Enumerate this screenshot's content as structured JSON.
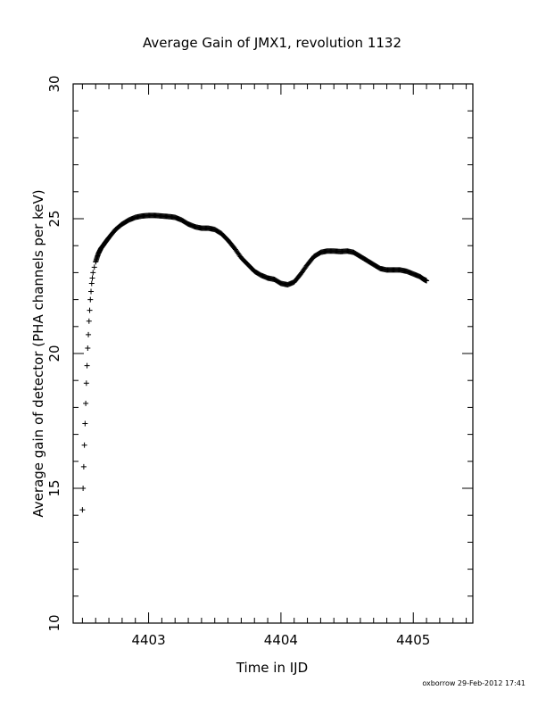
{
  "chart_data": {
    "type": "scatter",
    "title": "Average Gain of JMX1, revolution 1132",
    "xlabel": "Time in IJD",
    "ylabel": "Average gain of detector (PHA channels per keV)",
    "xlim": [
      4402.43,
      4405.45
    ],
    "ylim": [
      10,
      30
    ],
    "xticks": [
      4403,
      4404,
      4405
    ],
    "yticks": [
      10,
      15,
      20,
      25,
      30
    ],
    "marker": "+",
    "grid": false,
    "footer": "oxborrow 29-Feb-2012 17:41",
    "x": [
      4402.5,
      4402.51,
      4402.52,
      4402.53,
      4402.54,
      4402.55,
      4402.56,
      4402.57,
      4402.58,
      4402.6,
      4402.62,
      4402.64,
      4402.67,
      4402.7,
      4402.75,
      4402.8,
      4402.85,
      4402.9,
      4402.95,
      4403.0,
      4403.05,
      4403.1,
      4403.15,
      4403.2,
      4403.25,
      4403.3,
      4403.35,
      4403.4,
      4403.45,
      4403.5,
      4403.55,
      4403.6,
      4403.65,
      4403.7,
      4403.75,
      4403.8,
      4403.85,
      4403.9,
      4403.95,
      4404.0,
      4404.05,
      4404.1,
      4404.15,
      4404.2,
      4404.25,
      4404.3,
      4404.35,
      4404.4,
      4404.45,
      4404.5,
      4404.55,
      4404.6,
      4404.65,
      4404.7,
      4404.75,
      4404.8,
      4404.85,
      4404.9,
      4404.95,
      4405.0,
      4405.05,
      4405.08,
      4405.1
    ],
    "y": [
      14.2,
      15.8,
      17.4,
      18.9,
      20.2,
      21.2,
      22.0,
      22.6,
      23.0,
      23.4,
      23.7,
      23.9,
      24.1,
      24.3,
      24.6,
      24.8,
      24.95,
      25.05,
      25.1,
      25.12,
      25.12,
      25.1,
      25.08,
      25.05,
      24.95,
      24.8,
      24.7,
      24.65,
      24.65,
      24.6,
      24.45,
      24.2,
      23.9,
      23.55,
      23.3,
      23.05,
      22.9,
      22.8,
      22.75,
      22.6,
      22.55,
      22.65,
      22.95,
      23.3,
      23.6,
      23.75,
      23.8,
      23.8,
      23.78,
      23.8,
      23.75,
      23.6,
      23.45,
      23.3,
      23.15,
      23.1,
      23.1,
      23.1,
      23.05,
      22.95,
      22.85,
      22.75,
      22.7
    ]
  }
}
